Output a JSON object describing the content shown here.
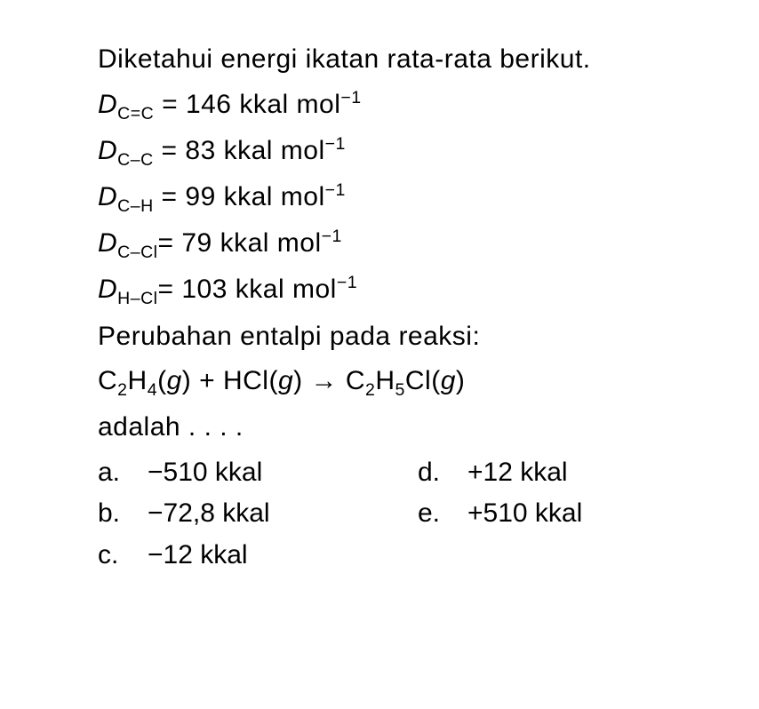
{
  "colors": {
    "text": "#000000",
    "background": "#ffffff"
  },
  "typography": {
    "font_family": "Arial",
    "font_size_pt": 22,
    "line_height": 1.55
  },
  "question": {
    "intro": "Diketahui energi ikatan rata-rata berikut.",
    "bonds": [
      {
        "var": "D",
        "sub": "C=C",
        "value": "146",
        "unit_prefix": "kkal mol",
        "unit_exp": "−1"
      },
      {
        "var": "D",
        "sub": "C–C",
        "value": "83",
        "unit_prefix": "kkal mol",
        "unit_exp": "−1"
      },
      {
        "var": "D",
        "sub": "C–H",
        "value": "99",
        "unit_prefix": "kkal mol",
        "unit_exp": "−1"
      },
      {
        "var": "D",
        "sub": "C–Cl",
        "value": "79",
        "unit_prefix": "kkal mol",
        "unit_exp": "−1"
      },
      {
        "var": "D",
        "sub": "H–Cl",
        "value": "103",
        "unit_prefix": "kkal mol",
        "unit_exp": "−1"
      }
    ],
    "prompt": "Perubahan entalpi pada reaksi:",
    "reaction": {
      "r1_formula": "C",
      "r1_sub1": "2",
      "r1_mid": "H",
      "r1_sub2": "4",
      "r1_phase": "g",
      "plus": "+",
      "r2_formula": "HCl",
      "r2_phase": "g",
      "arrow": "→",
      "p1_a": "C",
      "p1_s1": "2",
      "p1_b": "H",
      "p1_s2": "5",
      "p1_c": "Cl",
      "p1_phase": "g"
    },
    "tail": "adalah . . . .",
    "options": [
      {
        "letter": "a.",
        "text": "−510 kkal"
      },
      {
        "letter": "b.",
        "text": "−72,8 kkal"
      },
      {
        "letter": "c.",
        "text": "−12 kkal"
      },
      {
        "letter": "d.",
        "text": "+12 kkal"
      },
      {
        "letter": "e.",
        "text": "+510 kkal"
      }
    ]
  }
}
